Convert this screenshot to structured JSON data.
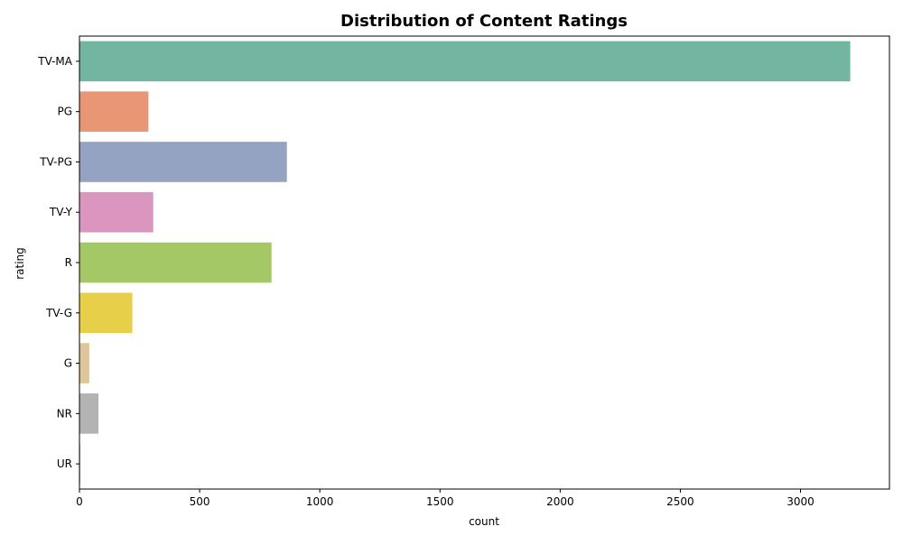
{
  "chart_data": {
    "type": "bar",
    "orientation": "horizontal",
    "title": "Distribution of Content Ratings",
    "xlabel": "count",
    "ylabel": "rating",
    "categories": [
      "TV-MA",
      "PG",
      "TV-PG",
      "TV-Y",
      "R",
      "TV-G",
      "G",
      "NR",
      "UR"
    ],
    "values": [
      3207,
      287,
      863,
      307,
      799,
      220,
      41,
      79,
      3
    ],
    "colors": [
      "#72b6a1",
      "#e99675",
      "#95a3c3",
      "#db96c0",
      "#a4c865",
      "#e8cf4a",
      "#dfc59c",
      "#b3b3b3",
      "#72b6a1"
    ],
    "xlim": [
      0,
      3370
    ],
    "x_ticks": [
      0,
      500,
      1000,
      1500,
      2000,
      2500,
      3000
    ],
    "x_tick_labels": [
      "0",
      "500",
      "1000",
      "1500",
      "2000",
      "2500",
      "3000"
    ],
    "grid": false,
    "legend": "none"
  }
}
